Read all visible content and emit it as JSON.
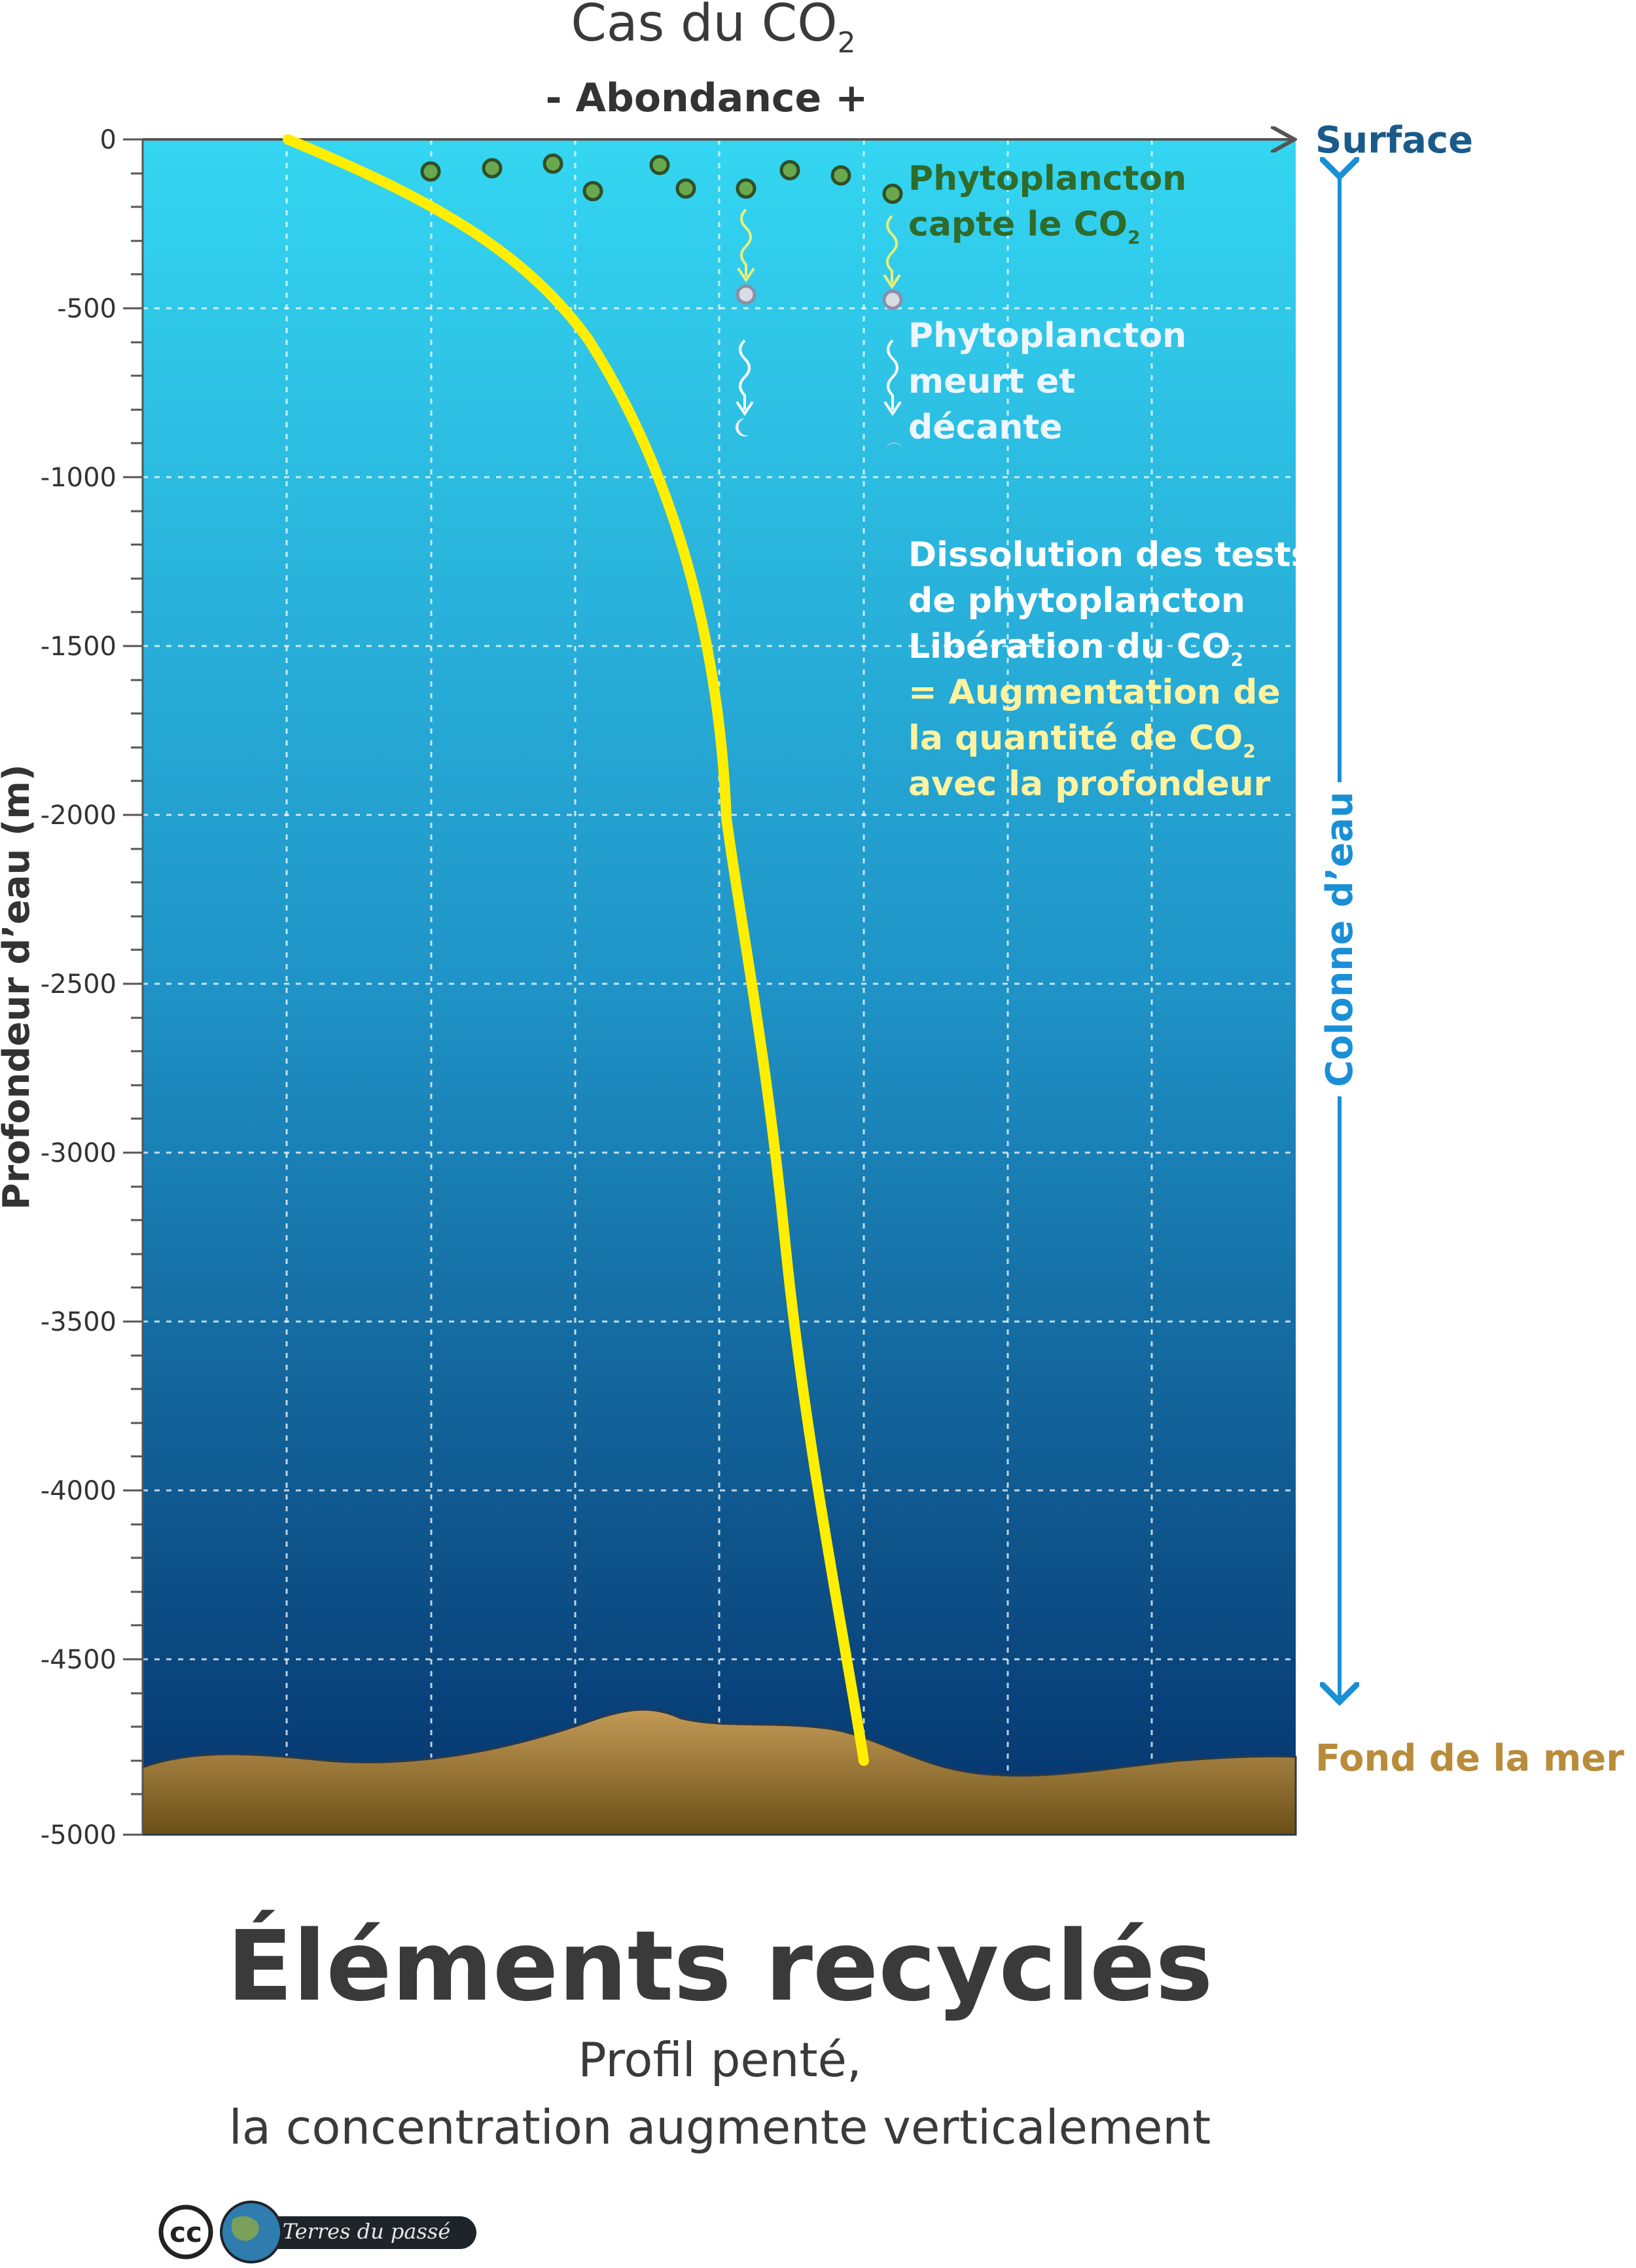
{
  "header": {
    "title_main": "Cas du CO",
    "title_sub": "2",
    "x_axis_label": "- Abondance +"
  },
  "y_axis": {
    "label": "Profondeur d’eau (m)",
    "ticks": [
      "0",
      "-500",
      "-1000",
      "-1500",
      "-2000",
      "-2500",
      "-3000",
      "-3500",
      "-4000",
      "-4500",
      "-5000"
    ]
  },
  "labels": {
    "surface": "Surface",
    "seafloor": "Fond de la mer",
    "water_column": "Colonne d’eau"
  },
  "annotations": {
    "capture_line1": "Phytoplancton",
    "capture_line2": "capte le CO",
    "capture_sub": "2",
    "death_line1": "Phytoplancton",
    "death_line2": "meurt et",
    "death_line3": "décante",
    "dissolution_line1": "Dissolution des tests",
    "dissolution_line2": "de phytoplancton",
    "dissolution_line3": "Libération du CO",
    "dissolution_sub3": "2",
    "dissolution_line4": "= Augmentation de",
    "dissolution_line5": "la quantité de CO",
    "dissolution_sub5": "2",
    "dissolution_line6": "avec la profondeur"
  },
  "footer": {
    "title": "Éléments recyclés",
    "subtitle_line1": "Profil penté,",
    "subtitle_line2": "la concentration augmente verticalement",
    "license": "cc",
    "brand": "Terres du passé"
  },
  "colors": {
    "water_top": "#34d6f2",
    "water_bottom": "#05336c",
    "sediment": "#b8924a",
    "profile_line": "#ffee00",
    "phytoplankton": "#6aa84f",
    "surface_label": "#1a5a8a",
    "column_arrow": "#1a8fd6",
    "seafloor_label": "#b88c3a",
    "dark_text": "#3a3a3a",
    "highlight_text": "#fff3a0"
  }
}
